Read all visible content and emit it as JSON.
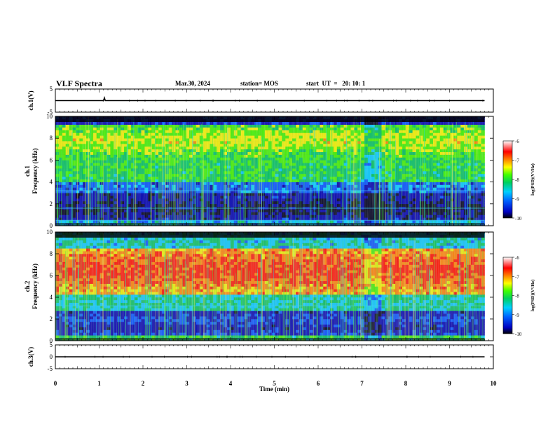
{
  "header": {
    "title": "VLF Spectra",
    "date": "Mar.30, 2024",
    "station": "station= MOS",
    "start": "start  UT  =   20: 10: 1"
  },
  "chart_data": [
    {
      "type": "line",
      "name": "ch1_voltage",
      "ylabel": "ch.1(V)",
      "ylim": [
        -5,
        5
      ],
      "yticks": [
        "5",
        "-5"
      ],
      "xlim": [
        0,
        10
      ],
      "x": [
        0.0,
        1.1,
        1.12,
        1.14,
        3.0,
        5.0,
        7.0,
        9.0,
        9.8
      ],
      "y": [
        0.0,
        0.0,
        1.2,
        0.0,
        0.0,
        0.0,
        0.0,
        0.0,
        0.0
      ]
    },
    {
      "type": "heatmap",
      "name": "ch1_spectrogram",
      "ylabel": "ch.1\nFrequency (kHz)",
      "ylim": [
        0,
        10
      ],
      "yticks": [
        "0",
        "2",
        "4",
        "6",
        "8",
        "10"
      ],
      "xlim": [
        0,
        10
      ],
      "colorbar": {
        "label": "log(PSD)(V²/Hz)",
        "range": [
          -10,
          -6
        ],
        "ticks": [
          "-6",
          "-7",
          "-8",
          "-9",
          "-10"
        ]
      },
      "features": {
        "band_low_khz": [
          0,
          3
        ],
        "band_high_khz": [
          4,
          9.5
        ],
        "line_khz": [
          0.5,
          1.6,
          3.2
        ]
      }
    },
    {
      "type": "heatmap",
      "name": "ch2_spectrogram",
      "ylabel": "ch.2\nFrequency (kHz)",
      "ylim": [
        0,
        10
      ],
      "yticks": [
        "0",
        "2",
        "4",
        "6",
        "8",
        "10"
      ],
      "xlim": [
        0,
        10
      ],
      "colorbar": {
        "label": "log(PSD)(V²/Hz)",
        "range": [
          -10,
          -6
        ],
        "ticks": [
          "-6",
          "-7",
          "-8",
          "-9",
          "-10"
        ]
      },
      "features": {
        "band_low_khz": [
          0,
          3
        ],
        "band_high_khz": [
          4,
          8.5
        ],
        "line_khz": [
          3.2
        ]
      }
    },
    {
      "type": "line",
      "name": "ch3_voltage",
      "ylabel": "ch.3(V)",
      "ylim": [
        -5,
        5
      ],
      "yticks": [
        "5",
        "0",
        "-5"
      ],
      "xlim": [
        0,
        10
      ],
      "x": [
        0.0,
        9.8
      ],
      "y": [
        0.0,
        0.0
      ]
    }
  ],
  "xaxis": {
    "label": "Time  (min)",
    "ticks": [
      "0",
      "1",
      "2",
      "3",
      "4",
      "5",
      "6",
      "7",
      "8",
      "9",
      "10"
    ]
  }
}
